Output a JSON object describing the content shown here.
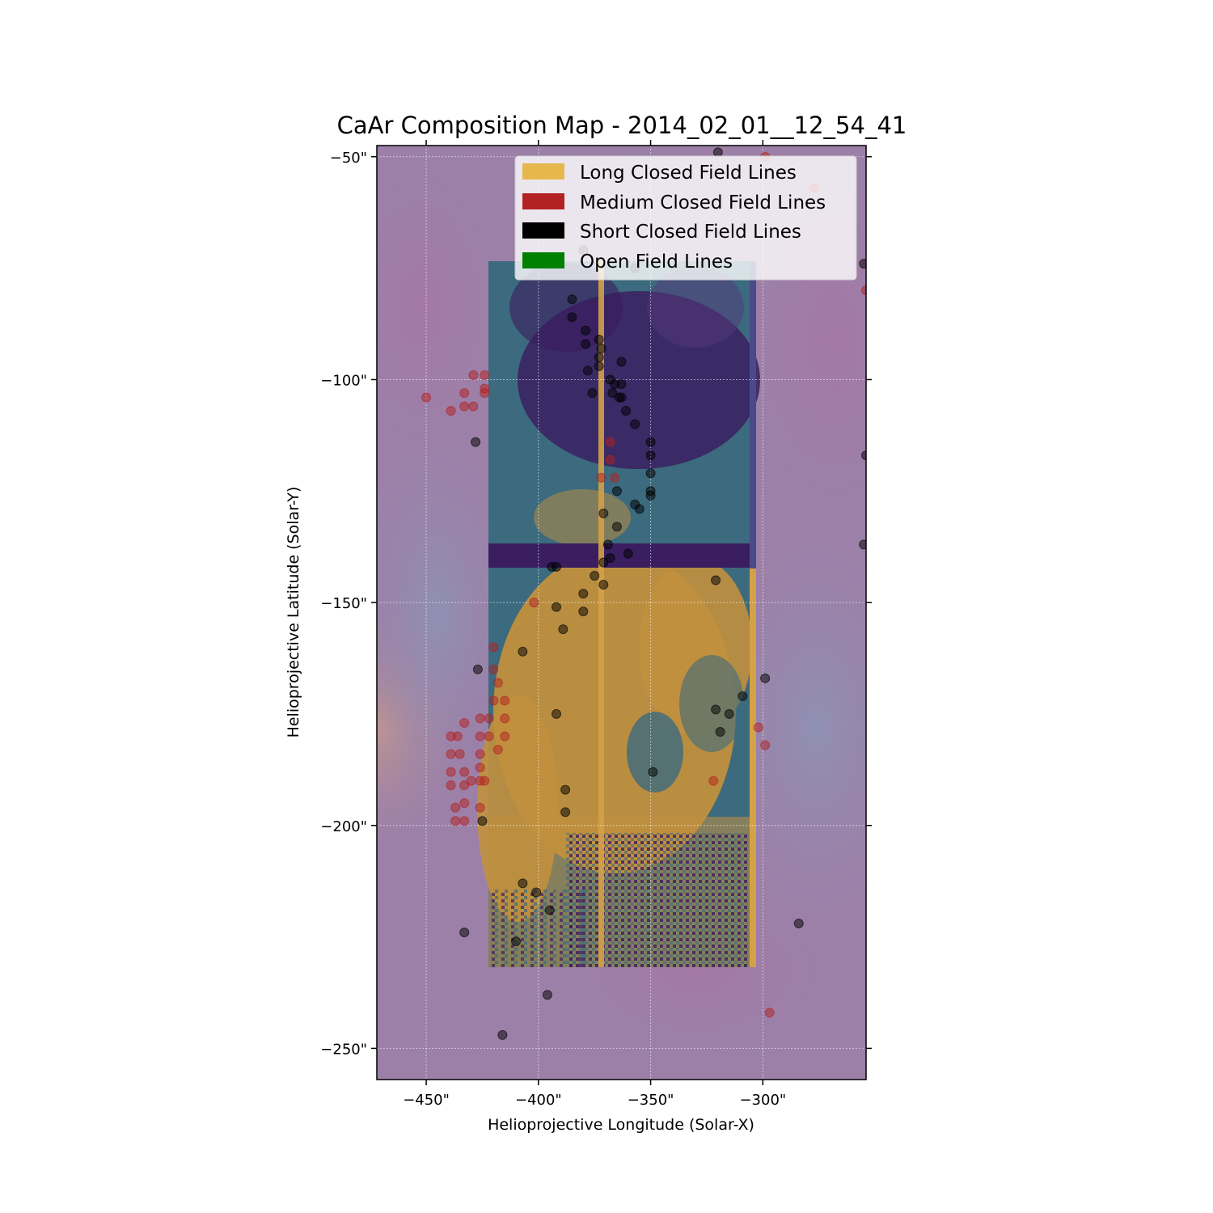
{
  "chart_data": {
    "type": "scatter",
    "title": "CaAr Composition Map - 2014_02_01__12_54_41",
    "xlabel": "Helioprojective Longitude (Solar-X)",
    "ylabel": "Helioprojective Latitude (Solar-Y)",
    "xlim": [
      -472,
      -254
    ],
    "ylim": [
      -257,
      -47.5
    ],
    "x_ticks": [
      -450,
      -400,
      -350,
      -300
    ],
    "y_ticks": [
      -50,
      -100,
      -150,
      -200,
      -250
    ],
    "x_tick_labels": [
      "−450\"",
      "−400\"",
      "−350\"",
      "−300\""
    ],
    "y_tick_labels": [
      "−50\"",
      "−100\"",
      "−150\"",
      "−200\"",
      "−250\""
    ],
    "grid": true,
    "legend_position": "top-right",
    "legend": [
      {
        "label": "Long Closed Field Lines",
        "color": "#e6b84c"
      },
      {
        "label": "Medium Closed Field Lines",
        "color": "#b22222"
      },
      {
        "label": "Short Closed Field Lines",
        "color": "#000000"
      },
      {
        "label": "Open Field Lines",
        "color": "#008000"
      }
    ],
    "background_colors": {
      "base": "#9c80a8",
      "low_fip": "#3a1e60",
      "mid": "#3c6a7e",
      "high": "#c1903e"
    },
    "raster_extent": {
      "x": [
        -422,
        -302
      ],
      "y": [
        -232,
        -74
      ]
    },
    "series": [
      {
        "name": "Medium Closed Field Lines",
        "color": "#b22222",
        "points": [
          [
            -450,
            -104
          ],
          [
            -429,
            -99
          ],
          [
            -424,
            -99
          ],
          [
            -433,
            -103
          ],
          [
            -424,
            -102
          ],
          [
            -424,
            -103
          ],
          [
            -433,
            -106
          ],
          [
            -439,
            -107
          ],
          [
            -429,
            -106
          ],
          [
            -372,
            -122
          ],
          [
            -366,
            -122
          ],
          [
            -368,
            -114
          ],
          [
            -368,
            -118
          ],
          [
            -402,
            -150
          ],
          [
            -420,
            -160
          ],
          [
            -420,
            -165
          ],
          [
            -418,
            -168
          ],
          [
            -420,
            -172
          ],
          [
            -415,
            -172
          ],
          [
            -433,
            -177
          ],
          [
            -426,
            -176
          ],
          [
            -422,
            -176
          ],
          [
            -415,
            -176
          ],
          [
            -439,
            -180
          ],
          [
            -436,
            -180
          ],
          [
            -426,
            -180
          ],
          [
            -422,
            -180
          ],
          [
            -415,
            -180
          ],
          [
            -418,
            -183
          ],
          [
            -439,
            -184
          ],
          [
            -435,
            -184
          ],
          [
            -426,
            -184
          ],
          [
            -439,
            -188
          ],
          [
            -433,
            -188
          ],
          [
            -426,
            -187
          ],
          [
            -439,
            -191
          ],
          [
            -433,
            -191
          ],
          [
            -430,
            -190
          ],
          [
            -426,
            -190
          ],
          [
            -424,
            -190
          ],
          [
            -433,
            -195
          ],
          [
            -437,
            -196
          ],
          [
            -426,
            -196
          ],
          [
            -437,
            -199
          ],
          [
            -433,
            -199
          ],
          [
            -322,
            -190
          ],
          [
            -299,
            -50
          ],
          [
            -277,
            -57
          ],
          [
            -252,
            -75
          ],
          [
            -254,
            -80
          ],
          [
            -302,
            -178
          ],
          [
            -299,
            -182
          ],
          [
            -297,
            -242
          ]
        ]
      },
      {
        "name": "Short Closed Field Lines",
        "color": "#000000",
        "points": [
          [
            -320,
            -49
          ],
          [
            -380,
            -71
          ],
          [
            -357,
            -75
          ],
          [
            -385,
            -82
          ],
          [
            -385,
            -86
          ],
          [
            -379,
            -89
          ],
          [
            -373,
            -91
          ],
          [
            -372,
            -93
          ],
          [
            -379,
            -92
          ],
          [
            -373,
            -95
          ],
          [
            -373,
            -97
          ],
          [
            -363,
            -96
          ],
          [
            -378,
            -98
          ],
          [
            -368,
            -100
          ],
          [
            -366,
            -101
          ],
          [
            -363,
            -101
          ],
          [
            -376,
            -103
          ],
          [
            -367,
            -103
          ],
          [
            -363,
            -104
          ],
          [
            -364,
            -104
          ],
          [
            -361,
            -107
          ],
          [
            -357,
            -110
          ],
          [
            -350,
            -114
          ],
          [
            -350,
            -117
          ],
          [
            -350,
            -121
          ],
          [
            -350,
            -125
          ],
          [
            -350,
            -126
          ],
          [
            -365,
            -125
          ],
          [
            -357,
            -128
          ],
          [
            -355,
            -129
          ],
          [
            -371,
            -130
          ],
          [
            -365,
            -133
          ],
          [
            -360,
            -139
          ],
          [
            -369,
            -137
          ],
          [
            -368,
            -140
          ],
          [
            -371,
            -141
          ],
          [
            -394,
            -142
          ],
          [
            -392,
            -142
          ],
          [
            -375,
            -144
          ],
          [
            -371,
            -146
          ],
          [
            -380,
            -148
          ],
          [
            -392,
            -151
          ],
          [
            -380,
            -152
          ],
          [
            -389,
            -156
          ],
          [
            -321,
            -145
          ],
          [
            -428,
            -114
          ],
          [
            -427,
            -165
          ],
          [
            -407,
            -161
          ],
          [
            -299,
            -167
          ],
          [
            -309,
            -171
          ],
          [
            -392,
            -175
          ],
          [
            -321,
            -174
          ],
          [
            -315,
            -175
          ],
          [
            -319,
            -179
          ],
          [
            -349,
            -188
          ],
          [
            -388,
            -192
          ],
          [
            -388,
            -197
          ],
          [
            -425,
            -199
          ],
          [
            -407,
            -213
          ],
          [
            -401,
            -215
          ],
          [
            -395,
            -219
          ],
          [
            -410,
            -226
          ],
          [
            -433,
            -224
          ],
          [
            -284,
            -222
          ],
          [
            -396,
            -238
          ],
          [
            -416,
            -247
          ],
          [
            -254,
            -117
          ],
          [
            -255,
            -74
          ],
          [
            -255,
            -137
          ]
        ]
      }
    ]
  }
}
